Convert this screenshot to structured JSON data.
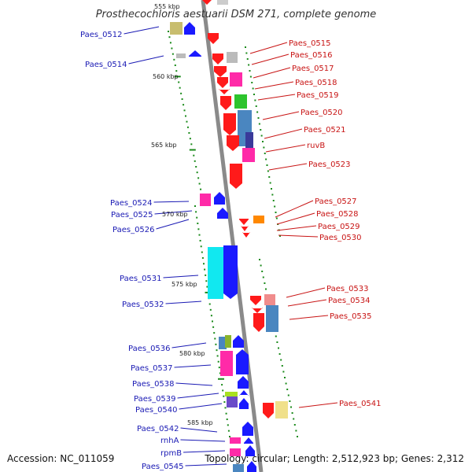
{
  "title": "Prosthecochloris aestuarii DSM 271, complete genome",
  "footer": {
    "accession": "Accession: NC_011059",
    "summary": "Topology: circular; Length: 2,512,923 bp; Genes: 2,312"
  },
  "colors": {
    "backbone": "#8a8a8a",
    "tick": "#1a8a1a",
    "left_label": "#1a1ab4",
    "right_label": "#c81414"
  },
  "scale_marks": [
    {
      "label": "555 kbp",
      "faded": true
    },
    {
      "label": "560 kbp"
    },
    {
      "label": "565 kbp"
    },
    {
      "label": "570 kbp"
    },
    {
      "label": "575 kbp"
    },
    {
      "label": "580 kbp"
    },
    {
      "label": "585 kbp"
    }
  ],
  "left_genes": [
    {
      "label": "Paes_0512"
    },
    {
      "label": "Paes_0514"
    },
    {
      "label": "Paes_0524"
    },
    {
      "label": "Paes_0525"
    },
    {
      "label": "Paes_0526"
    },
    {
      "label": "Paes_0531"
    },
    {
      "label": "Paes_0532"
    },
    {
      "label": "Paes_0536"
    },
    {
      "label": "Paes_0537"
    },
    {
      "label": "Paes_0538"
    },
    {
      "label": "Paes_0539"
    },
    {
      "label": "Paes_0540"
    },
    {
      "label": "Paes_0542"
    },
    {
      "label": "rnhA"
    },
    {
      "label": "rpmB"
    },
    {
      "label": "Paes_0545"
    }
  ],
  "right_genes": [
    {
      "label": "Paes_0515"
    },
    {
      "label": "Paes_0516"
    },
    {
      "label": "Paes_0517"
    },
    {
      "label": "Paes_0518"
    },
    {
      "label": "Paes_0519"
    },
    {
      "label": "Paes_0520"
    },
    {
      "label": "Paes_0521"
    },
    {
      "label": "ruvB"
    },
    {
      "label": "Paes_0523"
    },
    {
      "label": "Paes_0527"
    },
    {
      "label": "Paes_0528"
    },
    {
      "label": "Paes_0529"
    },
    {
      "label": "Paes_0530"
    },
    {
      "label": "Paes_0533"
    },
    {
      "label": "Paes_0534"
    },
    {
      "label": "Paes_0535"
    },
    {
      "label": "Paes_0541"
    }
  ]
}
